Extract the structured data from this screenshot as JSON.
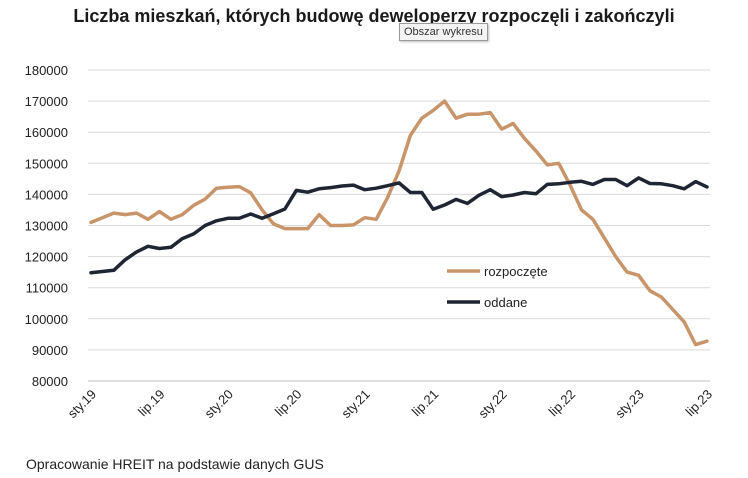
{
  "chart_data": {
    "type": "line",
    "title": "Liczba mieszkań, których budowę deweloperzy rozpoczęli i zakończyli",
    "tooltip": "Obszar wykresu",
    "xlabel": "",
    "ylabel": "",
    "ylim": [
      80000,
      180000
    ],
    "y_ticks": [
      "80000",
      "90000",
      "100000",
      "110000",
      "120000",
      "130000",
      "140000",
      "150000",
      "160000",
      "170000",
      "180000"
    ],
    "x_tick_labels": [
      {
        "index": 0,
        "label": "sty.19"
      },
      {
        "index": 6,
        "label": "lip.19"
      },
      {
        "index": 12,
        "label": "sty.20"
      },
      {
        "index": 18,
        "label": "lip.20"
      },
      {
        "index": 24,
        "label": "sty.21"
      },
      {
        "index": 30,
        "label": "lip.21"
      },
      {
        "index": 36,
        "label": "sty.22"
      },
      {
        "index": 42,
        "label": "lip.22"
      },
      {
        "index": 48,
        "label": "sty.23"
      },
      {
        "index": 54,
        "label": "lip.23"
      }
    ],
    "grid": true,
    "legend_position": "center-right",
    "series": [
      {
        "name": "rozpoczęte",
        "color": "#c8956a",
        "values": [
          131000,
          132500,
          134000,
          133500,
          134000,
          132000,
          134500,
          132000,
          133500,
          136500,
          138500,
          142000,
          142300,
          142500,
          140500,
          135000,
          130500,
          129000,
          129000,
          129000,
          133500,
          130000,
          130000,
          130200,
          132500,
          132000,
          139000,
          147500,
          159000,
          164500,
          167000,
          170000,
          164500,
          165800,
          165800,
          166300,
          161000,
          162800,
          158000,
          154000,
          149500,
          150000,
          143000,
          135000,
          132000,
          126000,
          120000,
          115000,
          114000,
          109000,
          107000,
          103000,
          99000,
          91700,
          92800
        ]
      },
      {
        "name": "oddane",
        "color": "#1f2533",
        "values": [
          114800,
          115200,
          115600,
          119000,
          121500,
          123300,
          122600,
          123000,
          125800,
          127300,
          130000,
          131500,
          132300,
          132300,
          133700,
          132300,
          133800,
          135300,
          141300,
          140700,
          141800,
          142200,
          142700,
          143000,
          141500,
          142000,
          142800,
          143700,
          140600,
          140600,
          135200,
          136600,
          138400,
          137100,
          139700,
          141500,
          139300,
          139800,
          140600,
          140200,
          143200,
          143400,
          143900,
          144200,
          143200,
          144800,
          144800,
          142800,
          145300,
          143500,
          143400,
          142800,
          141800,
          144100,
          142400
        ]
      }
    ]
  },
  "source": "Opracowanie HREIT na podstawie danych GUS"
}
